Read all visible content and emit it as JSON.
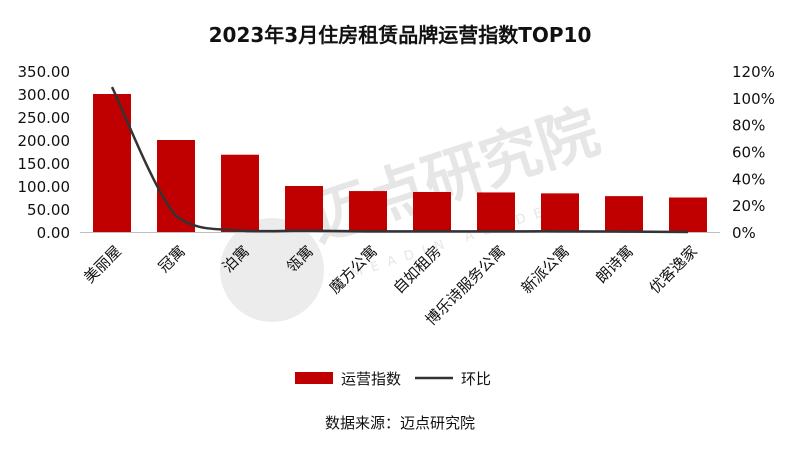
{
  "chart_data": {
    "type": "bar",
    "title": "2023年3月住房租赁品牌运营指数TOP10",
    "categories": [
      "美丽屋",
      "冠寓",
      "泊寓",
      "瓴寓",
      "魔方公寓",
      "自如租房",
      "博乐诗服务公寓",
      "新派公寓",
      "朗诗寓",
      "优客逸家"
    ],
    "series": [
      {
        "name": "运营指数",
        "type": "bar",
        "axis": "left",
        "color": "#c00000",
        "values": [
          300,
          200,
          168,
          100,
          89,
          87,
          86,
          84,
          78,
          75
        ]
      },
      {
        "name": "环比",
        "type": "line",
        "axis": "right",
        "color": "#333333",
        "values": [
          1.08,
          0.12,
          0.01,
          0.01,
          0.005,
          0.005,
          0.005,
          0.005,
          0.003,
          0.0
        ]
      }
    ],
    "y_left": {
      "ticks": [
        "0.00",
        "50.00",
        "100.00",
        "150.00",
        "200.00",
        "250.00",
        "300.00",
        "350.00"
      ],
      "ylim": [
        0,
        350
      ]
    },
    "y_right": {
      "ticks": [
        "0%",
        "20%",
        "40%",
        "60%",
        "80%",
        "100%",
        "120%"
      ],
      "ylim": [
        0,
        1.2
      ]
    },
    "legend_position": "bottom",
    "grid": false
  },
  "source": "数据来源：迈点研究院",
  "watermark": {
    "text": "迈点研究院",
    "sub": "MEADIN ACADEMY",
    "color": "#e6e6e6"
  }
}
